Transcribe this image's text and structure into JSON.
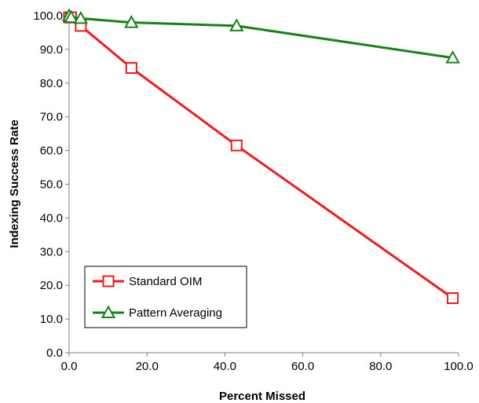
{
  "chart_data": {
    "type": "line",
    "title": "",
    "xlabel": "Percent Missed",
    "ylabel": "Indexing Success Rate",
    "xlim": [
      0,
      100
    ],
    "ylim": [
      0,
      100
    ],
    "xticks": [
      0,
      20,
      40,
      60,
      80,
      100
    ],
    "yticks": [
      0,
      10,
      20,
      30,
      40,
      50,
      60,
      70,
      80,
      90,
      100
    ],
    "x_tick_labels": [
      "0.0",
      "20.0",
      "40.0",
      "60.0",
      "80.0",
      "100.0"
    ],
    "y_tick_labels": [
      "0.0",
      "10.0",
      "20.0",
      "30.0",
      "40.0",
      "50.0",
      "60.0",
      "70.0",
      "80.0",
      "90.0",
      "100.0"
    ],
    "grid": false,
    "legend_position": "bottom-left",
    "series": [
      {
        "name": "Standard OIM",
        "color": "#ee1c1c",
        "marker": "square",
        "x": [
          0,
          0.5,
          3,
          16,
          43,
          98.5
        ],
        "y": [
          99.5,
          99.5,
          97,
          84.5,
          61.5,
          16.2
        ]
      },
      {
        "name": "Pattern Averaging",
        "color": "#178217",
        "marker": "triangle",
        "x": [
          0,
          0.5,
          3,
          16,
          43,
          98.5
        ],
        "y": [
          100,
          99.5,
          99.2,
          98,
          97,
          87.5
        ]
      }
    ]
  }
}
